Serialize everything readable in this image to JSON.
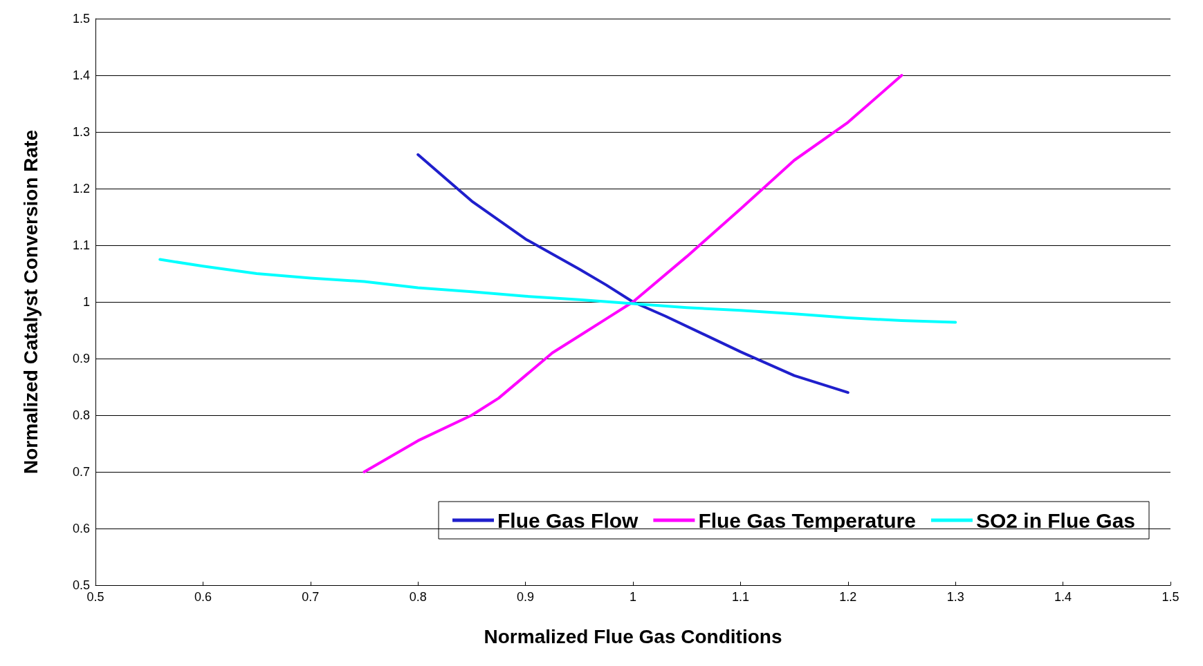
{
  "chart_data": {
    "type": "line",
    "xlabel": "Normalized Flue Gas Conditions",
    "ylabel": "Normalized Catalyst Conversion Rate",
    "xlim": [
      0.5,
      1.5
    ],
    "xticks": [
      0.5,
      0.6,
      0.7,
      0.8,
      0.9,
      1,
      1.1,
      1.2,
      1.3,
      1.4,
      1.5
    ],
    "ylim": [
      0.5,
      1.5
    ],
    "yticks": [
      0.5,
      0.6,
      0.7,
      0.8,
      0.9,
      1,
      1.1,
      1.2,
      1.3,
      1.4,
      1.5
    ],
    "grid": "y",
    "legend": "bottom right",
    "marker": "none",
    "line_style": "solid",
    "series": [
      {
        "name": "Flue Gas Flow",
        "color": "#1f1fcc",
        "x": [
          0.8,
          0.85,
          0.9,
          0.95,
          0.975,
          1.0,
          1.03,
          1.1,
          1.15,
          1.2
        ],
        "values": [
          1.26,
          1.178,
          1.111,
          1.058,
          1.03,
          1.0,
          0.975,
          0.912,
          0.87,
          0.84
        ]
      },
      {
        "name": "Flue Gas Temperature",
        "color": "#ff00ff",
        "x": [
          0.75,
          0.8,
          0.85,
          0.875,
          0.9,
          0.925,
          0.95,
          0.975,
          1.0,
          1.05,
          1.1,
          1.15,
          1.2,
          1.25
        ],
        "values": [
          0.7,
          0.755,
          0.8,
          0.83,
          0.87,
          0.91,
          0.94,
          0.97,
          1.0,
          1.08,
          1.164,
          1.25,
          1.317,
          1.4
        ]
      },
      {
        "name": "SO2 in Flue Gas",
        "color": "#00ffff",
        "x": [
          0.56,
          0.6,
          0.65,
          0.7,
          0.75,
          0.8,
          0.85,
          0.9,
          0.95,
          1.0,
          1.05,
          1.1,
          1.15,
          1.2,
          1.25,
          1.3
        ],
        "values": [
          1.075,
          1.063,
          1.05,
          1.042,
          1.036,
          1.025,
          1.018,
          1.01,
          1.004,
          0.997,
          0.99,
          0.985,
          0.979,
          0.972,
          0.967,
          0.964
        ]
      }
    ]
  }
}
